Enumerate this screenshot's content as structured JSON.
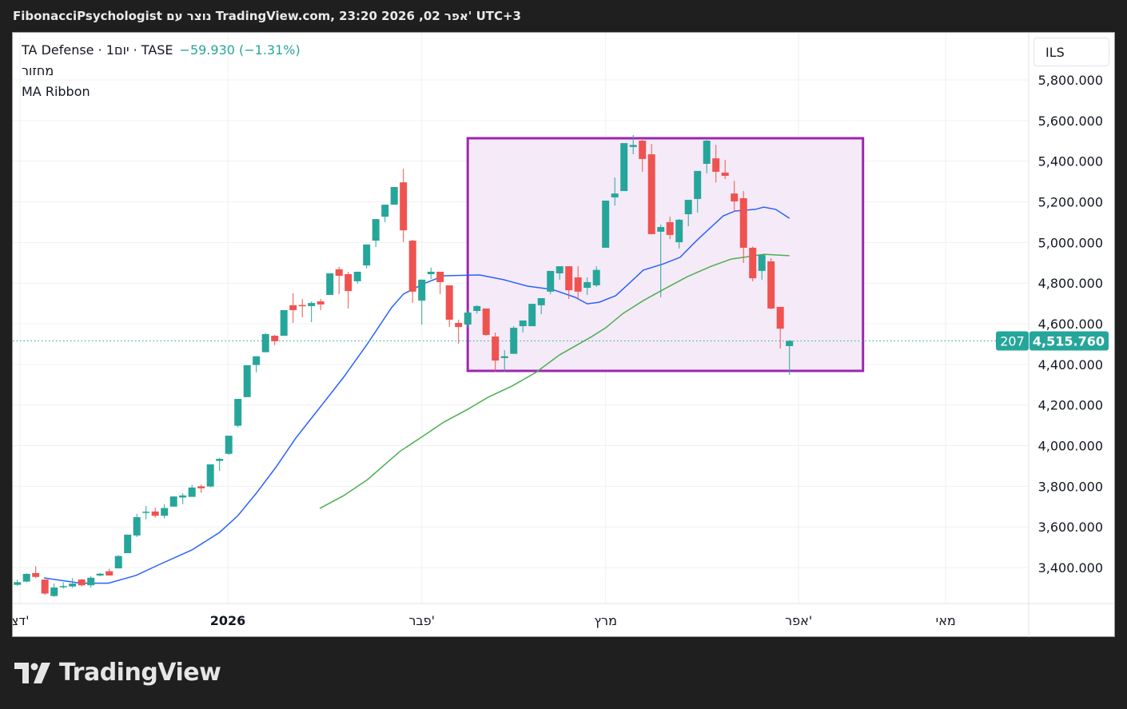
{
  "header": {
    "caption": "FibonacciPsychologist נוצר עם TradingView.com, 23:20 2026 ,02 אפר' UTC+3"
  },
  "legend": {
    "symbol": "TA Defense · 1יום · TASE",
    "change": "−59.930 (−1.31%)",
    "volume_label": "מחזור",
    "indicator": "MA Ribbon"
  },
  "currency": "ILS",
  "last_price": {
    "countdown": "207",
    "price": "4,515.760"
  },
  "logo": {
    "text": "TradingView"
  },
  "colors": {
    "up": "#26a69a",
    "down": "#ef5350",
    "ma_fast": "#2962ff",
    "ma_slow": "#4caf50",
    "box": "#9c27b0",
    "box_fill": "#f5eaf7"
  },
  "chart_data": {
    "type": "candlestick",
    "title": "TA Defense · 1D · TASE",
    "ylim": [
      3230,
      5950
    ],
    "y_ticks": [
      {
        "value": 5800,
        "label": "5,800.000"
      },
      {
        "value": 5600,
        "label": "5,600.000"
      },
      {
        "value": 5400,
        "label": "5,400.000"
      },
      {
        "value": 5200,
        "label": "5,200.000"
      },
      {
        "value": 5000,
        "label": "5,000.000"
      },
      {
        "value": 4800,
        "label": "4,800.000"
      },
      {
        "value": 4600,
        "label": "4,600.000"
      },
      {
        "value": 4400,
        "label": "4,400.000"
      },
      {
        "value": 4200,
        "label": "4,200.000"
      },
      {
        "value": 4000,
        "label": "4,000.000"
      },
      {
        "value": 3800,
        "label": "3,800.000"
      },
      {
        "value": 3600,
        "label": "3,600.000"
      },
      {
        "value": 3400,
        "label": "3,400.000"
      }
    ],
    "x_ticks": [
      {
        "index": 0.3,
        "label": "דצ'"
      },
      {
        "index": 22.9,
        "label": "2026",
        "bold": true
      },
      {
        "index": 44,
        "label": "פבר'"
      },
      {
        "index": 64,
        "label": "מרץ"
      },
      {
        "index": 85,
        "label": "אפר'"
      },
      {
        "index": 101,
        "label": "מאי"
      }
    ],
    "ohlc": [
      [
        3315,
        3341,
        3310,
        3328
      ],
      [
        3331,
        3372,
        3328,
        3369
      ],
      [
        3373,
        3407,
        3348,
        3354
      ],
      [
        3341,
        3341,
        3265,
        3272
      ],
      [
        3260,
        3321,
        3256,
        3302
      ],
      [
        3305,
        3328,
        3296,
        3309
      ],
      [
        3307,
        3348,
        3300,
        3321
      ],
      [
        3341,
        3345,
        3307,
        3313
      ],
      [
        3313,
        3357,
        3302,
        3350
      ],
      [
        3361,
        3373,
        3357,
        3370
      ],
      [
        3382,
        3394,
        3361,
        3361
      ],
      [
        3396,
        3461,
        3396,
        3457
      ],
      [
        3471,
        3562,
        3471,
        3562
      ],
      [
        3558,
        3664,
        3550,
        3648
      ],
      [
        3670,
        3703,
        3637,
        3675
      ],
      [
        3676,
        3695,
        3646,
        3655
      ],
      [
        3655,
        3711,
        3642,
        3693
      ],
      [
        3700,
        3750,
        3700,
        3750
      ],
      [
        3745,
        3766,
        3712,
        3755
      ],
      [
        3748,
        3807,
        3748,
        3794
      ],
      [
        3800,
        3809,
        3767,
        3790
      ],
      [
        3799,
        3908,
        3795,
        3908
      ],
      [
        3925,
        3939,
        3875,
        3935
      ],
      [
        3960,
        4049,
        3955,
        4049
      ],
      [
        4098,
        4230,
        4090,
        4230
      ],
      [
        4239,
        4396,
        4239,
        4396
      ],
      [
        4397,
        4440,
        4361,
        4440
      ],
      [
        4460,
        4555,
        4460,
        4549
      ],
      [
        4541,
        4545,
        4495,
        4514
      ],
      [
        4541,
        4667,
        4541,
        4667
      ],
      [
        4691,
        4750,
        4604,
        4667
      ],
      [
        4692,
        4722,
        4632,
        4687
      ],
      [
        4687,
        4710,
        4608,
        4702
      ],
      [
        4710,
        4722,
        4667,
        4695
      ],
      [
        4742,
        4848,
        4742,
        4848
      ],
      [
        4868,
        4880,
        4746,
        4836
      ],
      [
        4844,
        4856,
        4675,
        4761
      ],
      [
        4809,
        4856,
        4797,
        4856
      ],
      [
        4887,
        4990,
        4872,
        4990
      ],
      [
        5009,
        5115,
        4978,
        5115
      ],
      [
        5127,
        5186,
        5100,
        5186
      ],
      [
        5186,
        5273,
        5186,
        5273
      ],
      [
        5296,
        5363,
        5001,
        5060
      ],
      [
        5009,
        5013,
        4702,
        4758
      ],
      [
        4714,
        4817,
        4596,
        4817
      ],
      [
        4844,
        4876,
        4820,
        4856
      ],
      [
        4856,
        4856,
        4746,
        4805
      ],
      [
        4789,
        4789,
        4584,
        4620
      ],
      [
        4604,
        4620,
        4502,
        4584
      ],
      [
        4596,
        4667,
        4580,
        4655
      ],
      [
        4663,
        4691,
        4651,
        4687
      ],
      [
        4675,
        4675,
        4541,
        4545
      ],
      [
        4537,
        4557,
        4364,
        4419
      ],
      [
        4431,
        4470,
        4364,
        4440
      ],
      [
        4452,
        4588,
        4452,
        4580
      ],
      [
        4588,
        4616,
        4557,
        4616
      ],
      [
        4588,
        4698,
        4588,
        4698
      ],
      [
        4691,
        4726,
        4647,
        4726
      ],
      [
        4758,
        4860,
        4746,
        4860
      ],
      [
        4848,
        4883,
        4817,
        4883
      ],
      [
        4883,
        4883,
        4722,
        4765
      ],
      [
        4828,
        4883,
        4722,
        4758
      ],
      [
        4777,
        4828,
        4742,
        4805
      ],
      [
        4789,
        4883,
        4781,
        4865
      ],
      [
        4974,
        5206,
        4974,
        5206
      ],
      [
        5222,
        5320,
        5182,
        5241
      ],
      [
        5253,
        5489,
        5253,
        5489
      ],
      [
        5470,
        5529,
        5434,
        5480
      ],
      [
        5501,
        5505,
        5348,
        5411
      ],
      [
        5434,
        5485,
        5041,
        5041
      ],
      [
        5053,
        5088,
        4730,
        5076
      ],
      [
        5100,
        5127,
        5017,
        5037
      ],
      [
        5001,
        5115,
        4970,
        5112
      ],
      [
        5139,
        5210,
        5080,
        5210
      ],
      [
        5214,
        5352,
        5147,
        5352
      ],
      [
        5387,
        5505,
        5340,
        5501
      ],
      [
        5414,
        5481,
        5296,
        5348
      ],
      [
        5344,
        5407,
        5312,
        5328
      ],
      [
        5241,
        5304,
        5151,
        5202
      ],
      [
        5218,
        5253,
        4899,
        4974
      ],
      [
        4974,
        4980,
        4809,
        4824
      ],
      [
        4860,
        4940,
        4817,
        4938
      ],
      [
        4907,
        4923,
        4671,
        4675
      ],
      [
        4683,
        4683,
        4478,
        4575.69
      ],
      [
        4490,
        4520,
        4348,
        4515.76
      ]
    ],
    "series": [
      {
        "name": "MA fast",
        "points": [
          [
            2.9,
            3349
          ],
          [
            6.9,
            3323
          ],
          [
            9.9,
            3323
          ],
          [
            12.9,
            3361
          ],
          [
            15.5,
            3416
          ],
          [
            19,
            3487
          ],
          [
            22,
            3573
          ],
          [
            24,
            3656
          ],
          [
            26,
            3766
          ],
          [
            28.1,
            3892
          ],
          [
            30.3,
            4038
          ],
          [
            32.9,
            4187
          ],
          [
            35.5,
            4337
          ],
          [
            38.1,
            4502
          ],
          [
            40.7,
            4679
          ],
          [
            42,
            4746
          ],
          [
            44.2,
            4797
          ],
          [
            46.4,
            4836
          ],
          [
            50.3,
            4840
          ],
          [
            52.9,
            4817
          ],
          [
            55.5,
            4785
          ],
          [
            58.2,
            4769
          ],
          [
            60.7,
            4730
          ],
          [
            62,
            4698
          ],
          [
            63.3,
            4706
          ],
          [
            65.1,
            4738
          ],
          [
            66.8,
            4809
          ],
          [
            68.1,
            4864
          ],
          [
            70.3,
            4895
          ],
          [
            72.1,
            4927
          ],
          [
            73.8,
            5005
          ],
          [
            75.1,
            5060
          ],
          [
            76.8,
            5131
          ],
          [
            78.1,
            5155
          ],
          [
            80.3,
            5163
          ],
          [
            81.2,
            5174
          ],
          [
            82.5,
            5163
          ],
          [
            84,
            5119
          ]
        ]
      },
      {
        "name": "MA slow",
        "points": [
          [
            32.9,
            3691
          ],
          [
            35.5,
            3754
          ],
          [
            38.1,
            3833
          ],
          [
            41.6,
            3971
          ],
          [
            44.2,
            4049
          ],
          [
            46.4,
            4116
          ],
          [
            49,
            4179
          ],
          [
            51.2,
            4238
          ],
          [
            53.8,
            4293
          ],
          [
            56.4,
            4360
          ],
          [
            59,
            4447
          ],
          [
            62.5,
            4537
          ],
          [
            64,
            4580
          ],
          [
            65.9,
            4651
          ],
          [
            68.1,
            4714
          ],
          [
            70.3,
            4769
          ],
          [
            72.9,
            4832
          ],
          [
            75.5,
            4883
          ],
          [
            77.7,
            4919
          ],
          [
            79.5,
            4930
          ],
          [
            81.2,
            4942
          ],
          [
            84,
            4935
          ]
        ]
      }
    ],
    "annotation_box": {
      "from_index": 49,
      "to_index": 92,
      "top": 5513,
      "bottom": 4368
    },
    "last_close": 4515.76
  }
}
